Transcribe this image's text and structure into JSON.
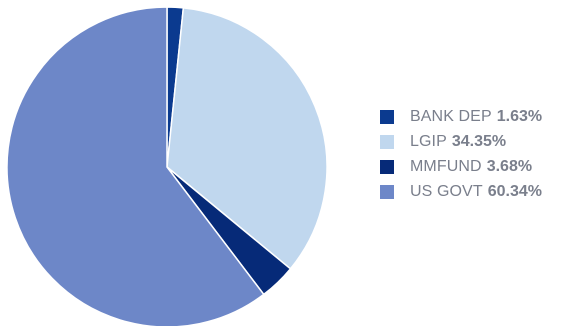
{
  "chart_data": {
    "type": "pie",
    "slices": [
      {
        "label": "BANK DEP",
        "value": 1.63,
        "value_label": "1.63%",
        "color": "#0b3a8f"
      },
      {
        "label": "LGIP",
        "value": 34.35,
        "value_label": "34.35%",
        "color": "#c0d7ee"
      },
      {
        "label": "MMFUND",
        "value": 3.68,
        "value_label": "3.68%",
        "color": "#062a78"
      },
      {
        "label": "US GOVT",
        "value": 60.34,
        "value_label": "60.34%",
        "color": "#6d87c8"
      }
    ],
    "start_angle_deg": 0,
    "direction": "clockwise",
    "legend_position": "right"
  }
}
